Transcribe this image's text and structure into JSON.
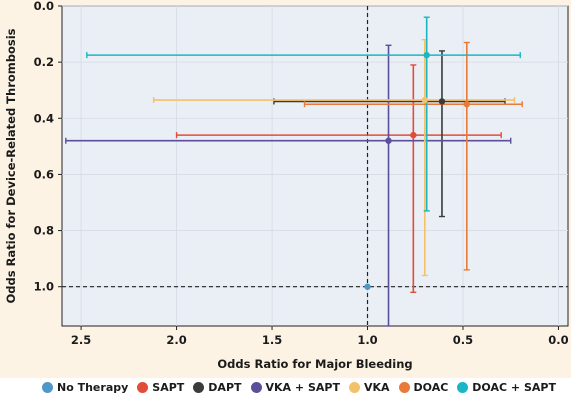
{
  "chart_data": {
    "type": "scatter",
    "title": "",
    "xlabel": "Odds Ratio for Major Bleeding",
    "ylabel": "Odds Ratio for Device-Related Thrombosis",
    "xlim": [
      2.6,
      -0.05
    ],
    "ylim": [
      0.0,
      1.14
    ],
    "x_ticks": [
      "2.5",
      "2.0",
      "1.5",
      "1.0",
      "0.5",
      "0.0"
    ],
    "x_tick_values": [
      2.5,
      2.0,
      1.5,
      1.0,
      0.5,
      0.0
    ],
    "y_ticks": [
      "0.0",
      "0.2",
      "0.4",
      "0.6",
      "0.8",
      "1.0"
    ],
    "y_tick_values": [
      0.0,
      0.2,
      0.4,
      0.6,
      0.8,
      1.0
    ],
    "x_inverted": true,
    "y_inverted": true,
    "grid": true,
    "reference_lines": {
      "x": 1.0,
      "y": 1.0
    },
    "legend_position": "bottom",
    "series": [
      {
        "name": "No Therapy",
        "color": "#4d98c9",
        "x": 1.0,
        "y": 1.0,
        "x_ci": null,
        "y_ci": null
      },
      {
        "name": "SAPT",
        "color": "#e14d39",
        "x": 0.76,
        "y": 0.46,
        "x_ci": [
          2.0,
          0.3
        ],
        "y_ci": [
          0.21,
          1.02
        ]
      },
      {
        "name": "DAPT",
        "color": "#3b3b3b",
        "x": 0.61,
        "y": 0.34,
        "x_ci": [
          1.49,
          0.28
        ],
        "y_ci": [
          0.16,
          0.75
        ]
      },
      {
        "name": "VKA + SAPT",
        "color": "#5b4f9a",
        "x": 0.89,
        "y": 0.48,
        "x_ci": [
          2.58,
          0.25
        ],
        "y_ci": [
          0.14,
          1.14
        ]
      },
      {
        "name": "VKA",
        "color": "#f4c16b",
        "x": 0.7,
        "y": 0.335,
        "x_ci": [
          2.12,
          0.23
        ],
        "y_ci": [
          0.12,
          0.96
        ]
      },
      {
        "name": "DOAC",
        "color": "#e87a3a",
        "x": 0.48,
        "y": 0.35,
        "x_ci": [
          1.33,
          0.19
        ],
        "y_ci": [
          0.13,
          0.94
        ]
      },
      {
        "name": "DOAC + SAPT",
        "color": "#1ab6c4",
        "x": 0.69,
        "y": 0.175,
        "x_ci": [
          2.47,
          0.2
        ],
        "y_ci": [
          0.04,
          0.73
        ]
      }
    ]
  }
}
